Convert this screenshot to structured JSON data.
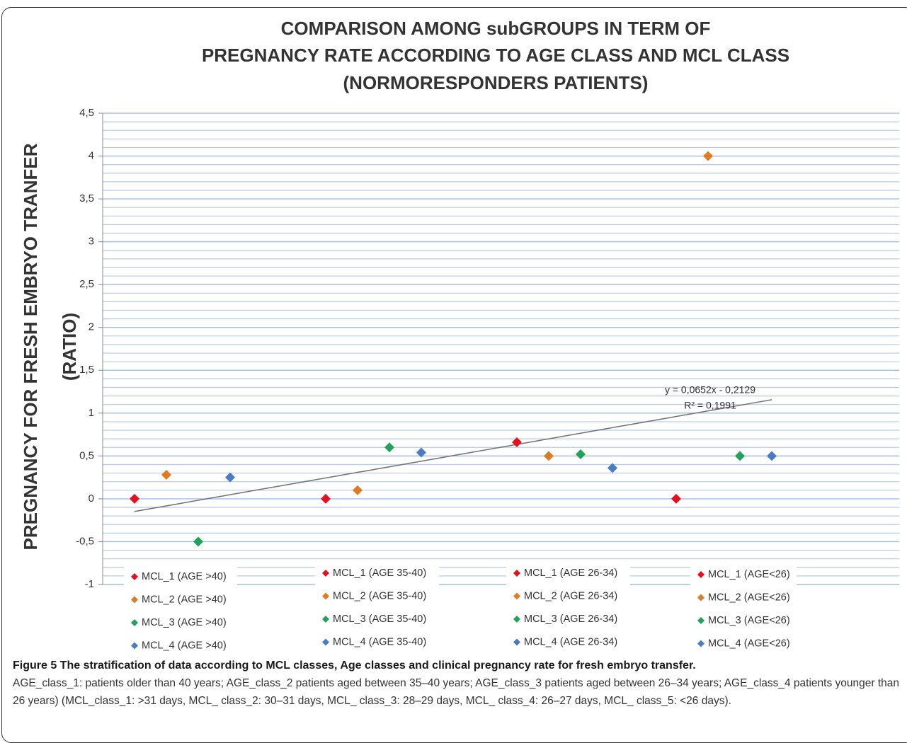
{
  "chart_data": {
    "type": "scatter",
    "title": [
      "COMPARISON AMONG subGROUPS IN TERM OF",
      "PREGNANCY RATE ACCORDING TO AGE CLASS AND MCL CLASS",
      "(NORMORESPONDERS  PATIENTS)"
    ],
    "y_label": [
      "PREGNANCY FOR FRESH EMBRYO TRANFER",
      "(RATIO)"
    ],
    "xlim": [
      0,
      25
    ],
    "ylim": [
      -1,
      4.5
    ],
    "yticks": [
      {
        "value": -1,
        "label": "-1"
      },
      {
        "value": -0.5,
        "label": "-0,5"
      },
      0,
      {
        "value": 0.5,
        "label": "0,5"
      },
      1,
      {
        "value": 1.5,
        "label": "1,5"
      },
      2,
      {
        "value": 2.5,
        "label": "2,5"
      },
      3,
      {
        "value": 3.5,
        "label": "3,5"
      },
      4,
      {
        "value": 4.5,
        "label": "4,5"
      }
    ],
    "grid": true,
    "series": [
      {
        "name": "MCL_1 (AGE >40)",
        "color": "#e3101e",
        "x": [
          1
        ],
        "values": [
          0
        ]
      },
      {
        "name": "MCL_2 (AGE >40)",
        "color": "#e07b22",
        "x": [
          2
        ],
        "values": [
          0.28
        ]
      },
      {
        "name": "MCL_3 (AGE >40)",
        "color": "#1fa35b",
        "x": [
          3
        ],
        "values": [
          -0.5
        ]
      },
      {
        "name": "MCL_4 (AGE >40)",
        "color": "#4a7cc4",
        "x": [
          4
        ],
        "values": [
          0.25
        ]
      },
      {
        "name": "MCL_1 (AGE 35-40)",
        "color": "#e3101e",
        "x": [
          7
        ],
        "values": [
          0
        ]
      },
      {
        "name": "MCL_2 (AGE 35-40)",
        "color": "#e07b22",
        "x": [
          8
        ],
        "values": [
          0.1
        ]
      },
      {
        "name": "MCL_3 (AGE 35-40)",
        "color": "#1fa35b",
        "x": [
          9
        ],
        "values": [
          0.6
        ]
      },
      {
        "name": "MCL_4 (AGE 35-40)",
        "color": "#4a7cc4",
        "x": [
          10
        ],
        "values": [
          0.54
        ]
      },
      {
        "name": "MCL_1 (AGE 26-34)",
        "color": "#e3101e",
        "x": [
          13
        ],
        "values": [
          0.66
        ]
      },
      {
        "name": "MCL_2 (AGE 26-34)",
        "color": "#e07b22",
        "x": [
          14
        ],
        "values": [
          0.5
        ]
      },
      {
        "name": "MCL_3 (AGE 26-34)",
        "color": "#1fa35b",
        "x": [
          15
        ],
        "values": [
          0.52
        ]
      },
      {
        "name": "MCL_4 (AGE 26-34)",
        "color": "#4a7cc4",
        "x": [
          16
        ],
        "values": [
          0.36
        ]
      },
      {
        "name": "MCL_1 (AGE<26)",
        "color": "#e3101e",
        "x": [
          18
        ],
        "values": [
          0
        ]
      },
      {
        "name": "MCL_2 (AGE<26)",
        "color": "#e07b22",
        "x": [
          19
        ],
        "values": [
          4
        ]
      },
      {
        "name": "MCL_3 (AGE<26)",
        "color": "#1fa35b",
        "x": [
          20
        ],
        "values": [
          0.5
        ]
      },
      {
        "name": "MCL_4 (AGE<26)",
        "color": "#4a7cc4",
        "x": [
          21
        ],
        "values": [
          0.5
        ]
      }
    ],
    "trendline": {
      "slope": 0.0652,
      "intercept": -0.2129,
      "xrange": [
        1,
        21
      ],
      "color": "#777777",
      "label": "y = 0,0652x - 0,2129",
      "r2_label": "R² = 0,1991"
    },
    "caption": {
      "title": "Figure 5 The stratification of data according to MCL classes, Age classes and clinical pregnancy rate for fresh embryo transfer.",
      "text": "AGE_class_1: patients older than 40 years; AGE_class_2 patients aged between 35–40 years; AGE_class_3 patients aged between 26–34 years; AGE_class_4 patients younger than 26 years) (MCL_class_1: >31 days, MCL_ class_2: 30–31 days, MCL_ class_3: 28–29 days, MCL_ class_4: 26–27 days, MCL_ class_5: <26 days)."
    }
  }
}
